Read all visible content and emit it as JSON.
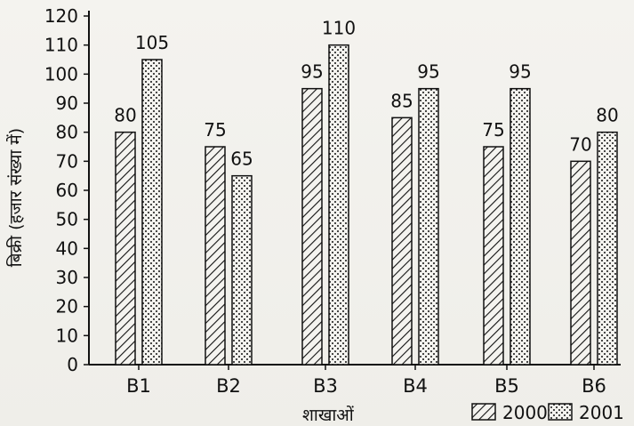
{
  "chart_data": {
    "type": "bar",
    "categories": [
      "B1",
      "B2",
      "B3",
      "B4",
      "B5",
      "B6"
    ],
    "series": [
      {
        "name": "2000",
        "values": [
          80,
          75,
          95,
          85,
          75,
          70
        ],
        "pattern": "diagonal-hatch",
        "color": "#111111"
      },
      {
        "name": "2001",
        "values": [
          105,
          65,
          110,
          95,
          95,
          80
        ],
        "pattern": "dotted",
        "color": "#111111"
      }
    ],
    "xlabel": "शाखाओं",
    "ylabel": "बिक्री (हजार संख्या में)",
    "ylim": [
      0,
      120
    ],
    "yticks": [
      0,
      10,
      20,
      30,
      40,
      50,
      60,
      70,
      80,
      90,
      100,
      110,
      120
    ],
    "grid": false,
    "legend_position": "bottom-right"
  }
}
